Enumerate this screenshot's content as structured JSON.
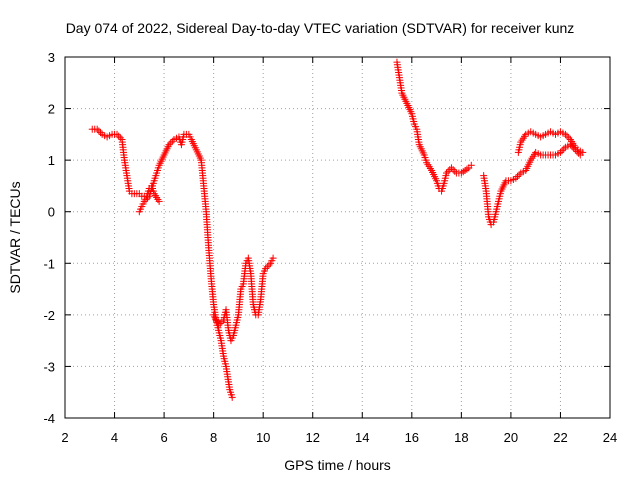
{
  "chart_data": {
    "type": "scatter",
    "title": "Day 074 of 2022, Sidereal Day-to-day VTEC variation (SDTVAR) for receiver kunz",
    "xlabel": "GPS time / hours",
    "ylabel": "SDTVAR / TECUs",
    "xlim": [
      2,
      24
    ],
    "ylim": [
      -4,
      3
    ],
    "xticks": [
      "2",
      "4",
      "6",
      "8",
      "10",
      "12",
      "14",
      "16",
      "18",
      "20",
      "22",
      "24"
    ],
    "yticks": [
      "-4",
      "-3",
      "-2",
      "-1",
      "0",
      "1",
      "2",
      "3"
    ],
    "grid": true,
    "marker": "plus",
    "color": "#ff0000",
    "series": [
      {
        "x": [
          3.1,
          3.3,
          3.5,
          3.7,
          3.9,
          4.1,
          4.3,
          4.4,
          4.5,
          4.6,
          4.7,
          5.0,
          5.1,
          5.3,
          5.4,
          5.5,
          5.6,
          5.8
        ],
        "y": [
          1.6,
          1.6,
          1.5,
          1.45,
          1.5,
          1.5,
          1.4,
          1.0,
          0.7,
          0.4,
          0.35,
          0.35,
          0.3,
          0.3,
          0.45,
          0.5,
          0.35,
          0.2
        ]
      },
      {
        "x": [
          5.0,
          5.1,
          5.2,
          5.4,
          5.6,
          5.8,
          6.0,
          6.2,
          6.4,
          6.6,
          6.7,
          6.8,
          7.0,
          7.1,
          7.3,
          7.5,
          7.6,
          7.7,
          7.8,
          7.9,
          8.0,
          8.1,
          8.2,
          8.3,
          8.4,
          8.5,
          8.6,
          8.65,
          8.75
        ],
        "y": [
          0.0,
          0.1,
          0.2,
          0.3,
          0.6,
          0.9,
          1.1,
          1.3,
          1.4,
          1.45,
          1.3,
          1.5,
          1.5,
          1.4,
          1.2,
          1.0,
          0.5,
          0.0,
          -0.7,
          -1.3,
          -1.8,
          -2.1,
          -2.3,
          -2.5,
          -2.8,
          -3.0,
          -3.3,
          -3.45,
          -3.6
        ]
      },
      {
        "x": [
          8.0,
          8.2,
          8.4,
          8.5,
          8.6,
          8.7,
          8.8,
          9.0,
          9.1,
          9.2,
          9.3,
          9.4,
          9.5,
          9.6,
          9.7,
          9.8,
          9.9,
          10.0,
          10.1,
          10.3,
          10.4
        ],
        "y": [
          -2.0,
          -2.2,
          -2.1,
          -1.9,
          -2.3,
          -2.5,
          -2.4,
          -2.0,
          -1.5,
          -1.4,
          -1.0,
          -0.9,
          -1.2,
          -1.8,
          -2.0,
          -2.0,
          -1.7,
          -1.2,
          -1.1,
          -1.0,
          -0.9
        ]
      },
      {
        "x": [
          15.4,
          15.5,
          15.6,
          15.8,
          16.0,
          16.1,
          16.2,
          16.3,
          16.5,
          16.6,
          16.8,
          17.0,
          17.1,
          17.2,
          17.3,
          17.4,
          17.6,
          17.8,
          18.0,
          18.3,
          18.4
        ],
        "y": [
          2.9,
          2.6,
          2.3,
          2.1,
          1.9,
          1.7,
          1.6,
          1.3,
          1.1,
          0.95,
          0.8,
          0.6,
          0.45,
          0.4,
          0.55,
          0.75,
          0.85,
          0.75,
          0.75,
          0.85,
          0.9
        ]
      },
      {
        "x": [
          18.9,
          19.0,
          19.1,
          19.2,
          19.3,
          19.4,
          19.6,
          19.8,
          20.0,
          20.2,
          20.4,
          20.6,
          20.8,
          21.0,
          21.2,
          21.4,
          21.6,
          21.8,
          22.0,
          22.2,
          22.4,
          22.6,
          22.8
        ],
        "y": [
          0.7,
          0.4,
          -0.1,
          -0.25,
          -0.2,
          0.0,
          0.4,
          0.6,
          0.6,
          0.65,
          0.75,
          0.8,
          1.0,
          1.15,
          1.1,
          1.1,
          1.1,
          1.1,
          1.15,
          1.25,
          1.3,
          1.2,
          1.1
        ]
      },
      {
        "x": [
          20.3,
          20.4,
          20.6,
          20.8,
          21.0,
          21.2,
          21.4,
          21.6,
          21.8,
          22.0,
          22.2,
          22.4,
          22.6,
          22.7,
          22.9
        ],
        "y": [
          1.15,
          1.35,
          1.5,
          1.55,
          1.5,
          1.45,
          1.5,
          1.55,
          1.5,
          1.55,
          1.5,
          1.4,
          1.25,
          1.2,
          1.15
        ]
      }
    ]
  }
}
